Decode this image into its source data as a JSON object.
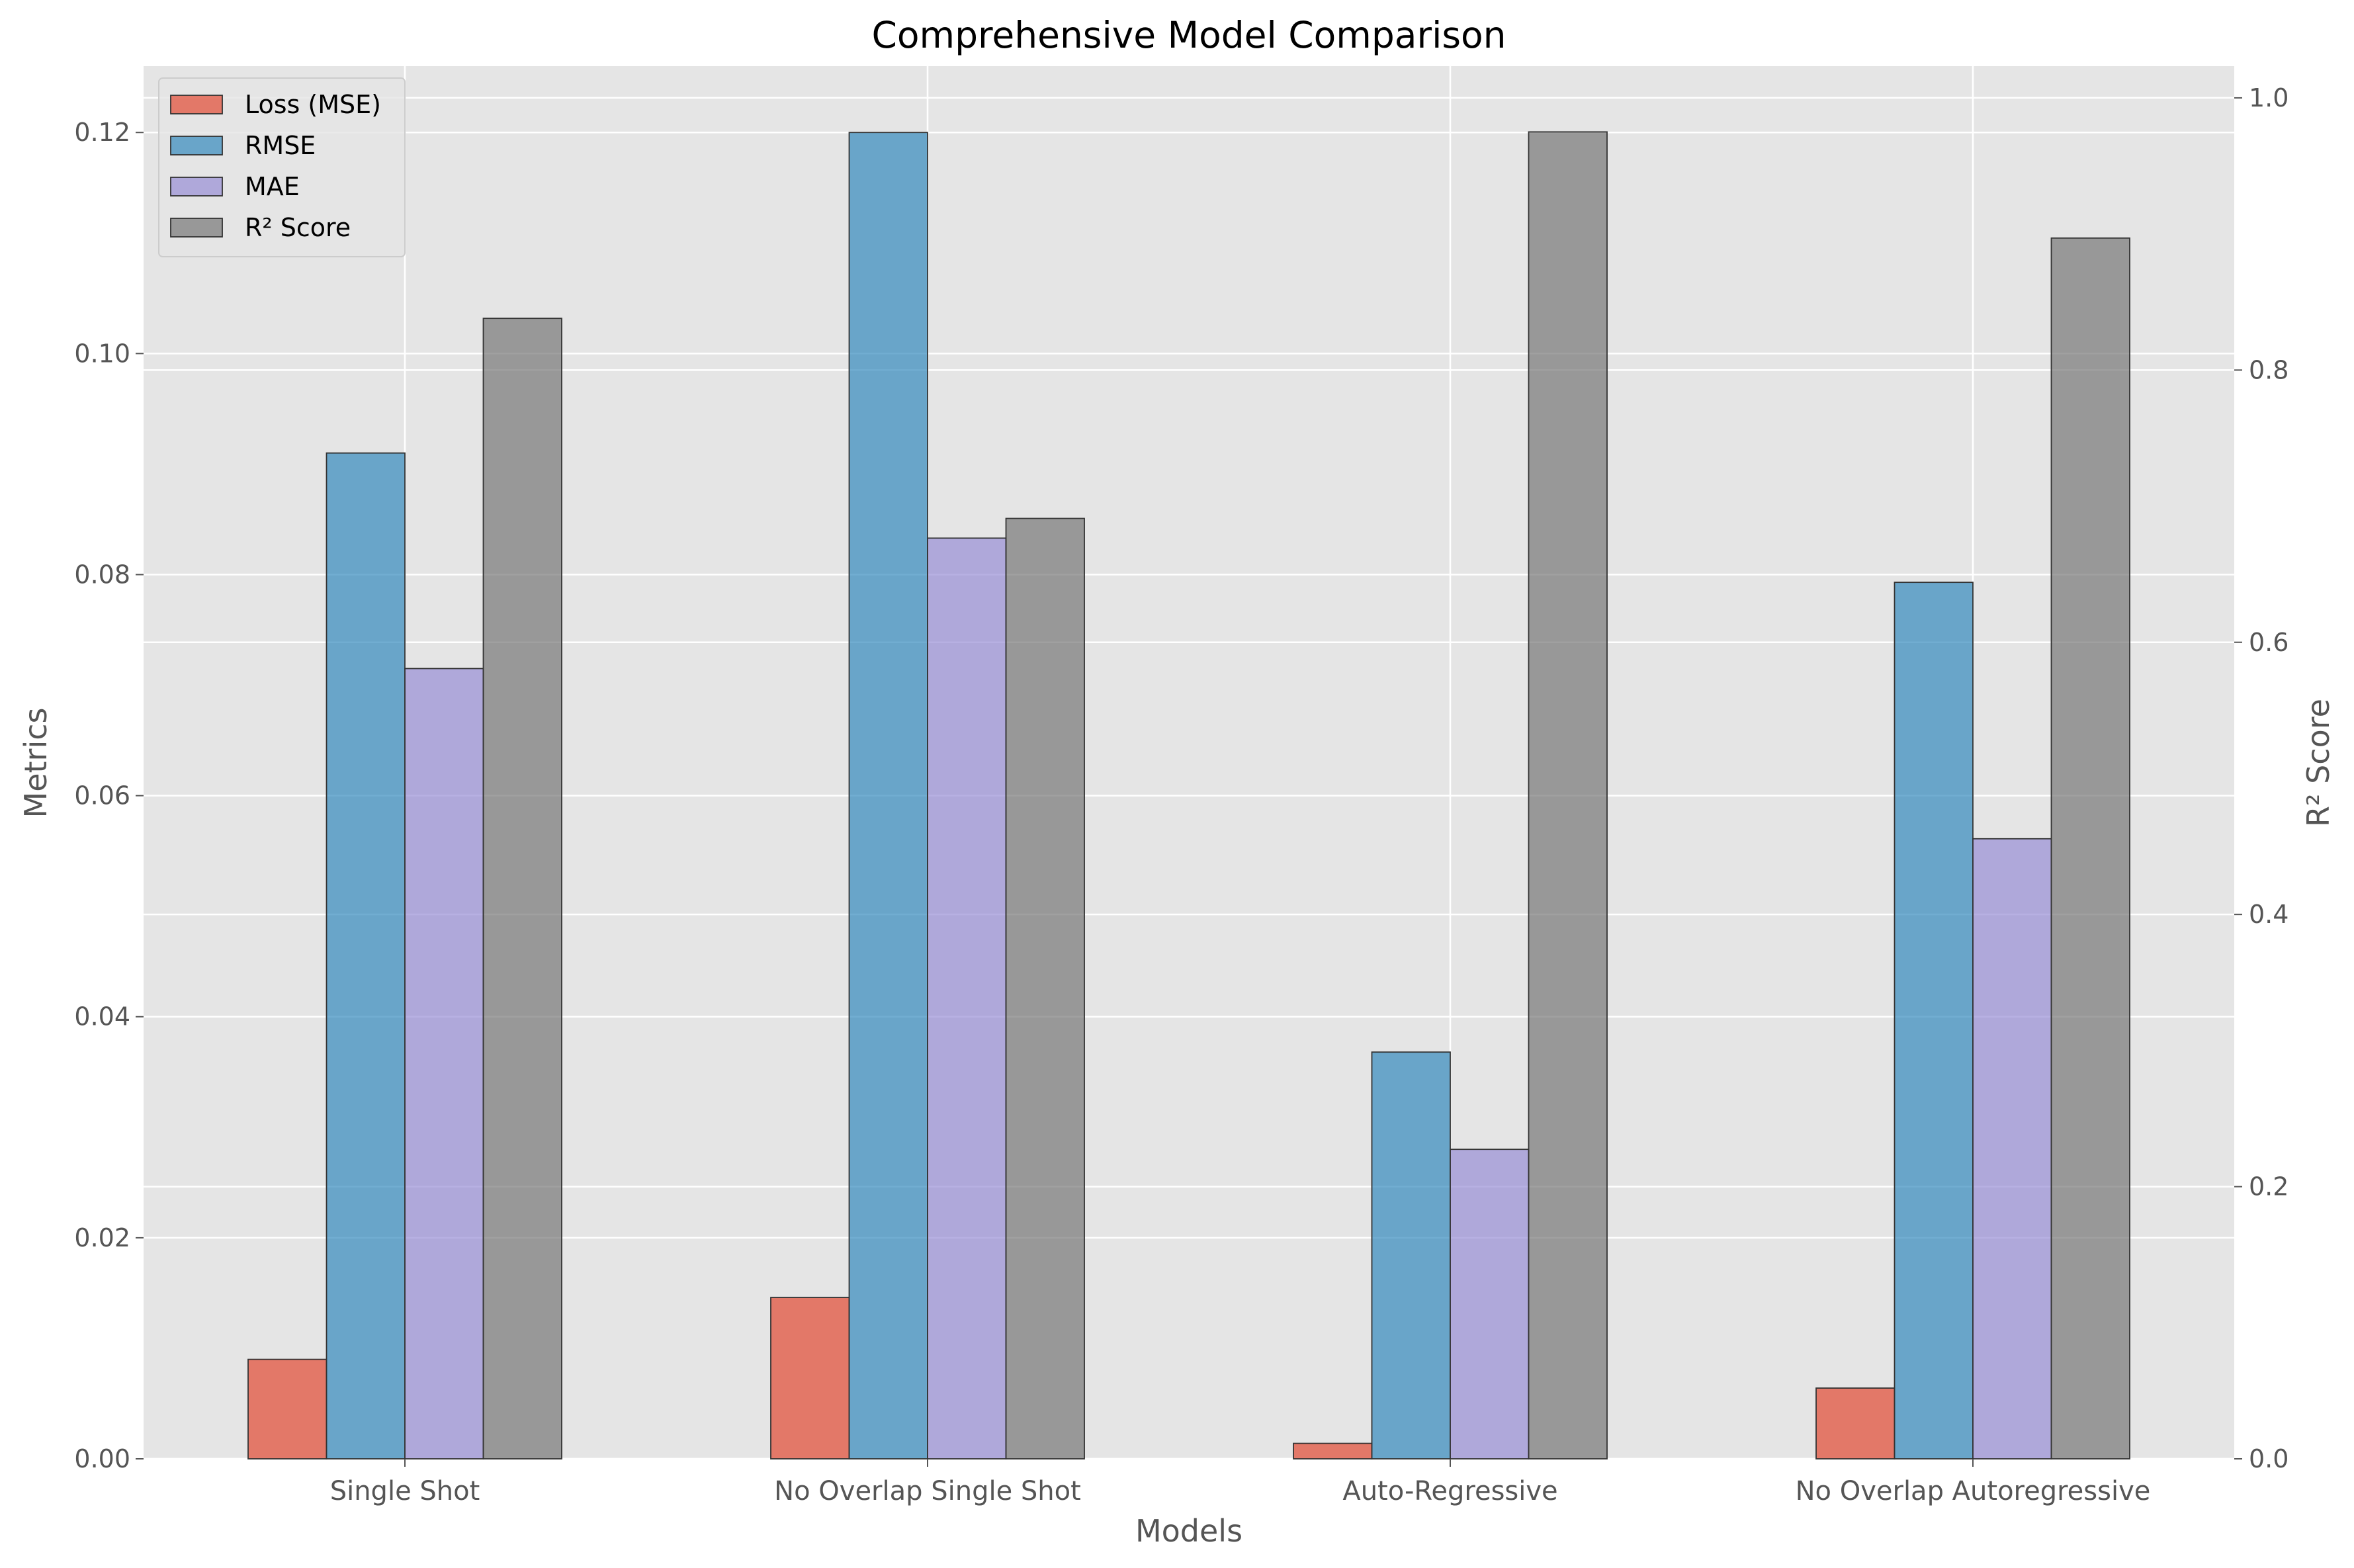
{
  "chart_data": {
    "type": "bar",
    "title": "Comprehensive Model Comparison",
    "xlabel": "Models",
    "ylabel": "Metrics",
    "y2label": "R² Score",
    "categories": [
      "Single Shot",
      "No Overlap Single Shot",
      "Auto-Regressive",
      "No Overlap Autoregressive"
    ],
    "ylim": [
      0,
      0.126
    ],
    "y2lim": [
      0,
      1.0233
    ],
    "yticks": [
      "0.00",
      "0.02",
      "0.04",
      "0.06",
      "0.08",
      "0.10",
      "0.12"
    ],
    "y2ticks": [
      "0.0",
      "0.2",
      "0.4",
      "0.6",
      "0.8",
      "1.0"
    ],
    "grid": true,
    "legend_position": "upper-left",
    "series": [
      {
        "name": "Loss (MSE)",
        "axis": "left",
        "color": "#e24a33",
        "values": [
          0.009,
          0.0146,
          0.0014,
          0.0064
        ]
      },
      {
        "name": "RMSE",
        "axis": "left",
        "color": "#348abd",
        "values": [
          0.091,
          0.12,
          0.0368,
          0.0793
        ]
      },
      {
        "name": "MAE",
        "axis": "left",
        "color": "#988ed5",
        "values": [
          0.0715,
          0.0833,
          0.028,
          0.0561
        ]
      },
      {
        "name": "R² Score",
        "axis": "right",
        "color": "#777777",
        "values": [
          0.838,
          0.691,
          0.975,
          0.897
        ]
      }
    ]
  }
}
